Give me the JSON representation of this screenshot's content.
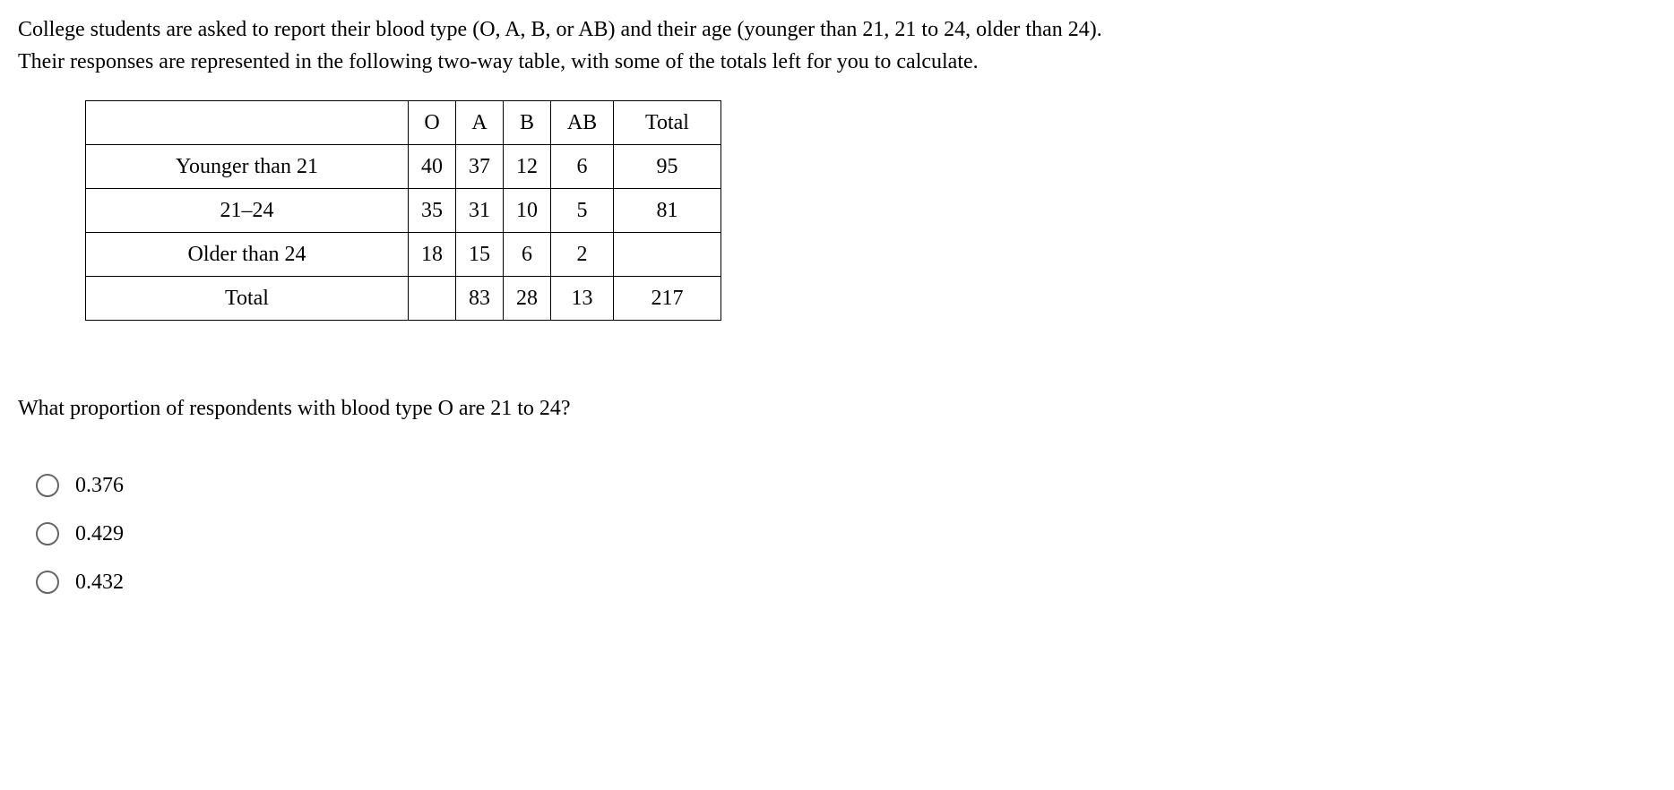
{
  "intro": {
    "line1": "College students are asked to report their blood type (O, A, B, or AB) and their age (younger than 21, 21 to 24, older than 24).",
    "line2": "Their responses are represented in the following two-way table, with some of the totals left for you to calculate."
  },
  "table": {
    "headers": {
      "blank": "",
      "o": "O",
      "a": "A",
      "b": "B",
      "ab": "AB",
      "total": "Total"
    },
    "rows": [
      {
        "label": "Younger than 21",
        "o": "40",
        "a": "37",
        "b": "12",
        "ab": "6",
        "total": "95"
      },
      {
        "label": "21–24",
        "o": "35",
        "a": "31",
        "b": "10",
        "ab": "5",
        "total": "81"
      },
      {
        "label": "Older than 24",
        "o": "18",
        "a": "15",
        "b": "6",
        "ab": "2",
        "total": ""
      },
      {
        "label": "Total",
        "o": "",
        "a": "83",
        "b": "28",
        "ab": "13",
        "total": "217"
      }
    ]
  },
  "question": "What proportion of respondents with blood type O are 21 to 24?",
  "options": [
    "0.376",
    "0.429",
    "0.432"
  ]
}
